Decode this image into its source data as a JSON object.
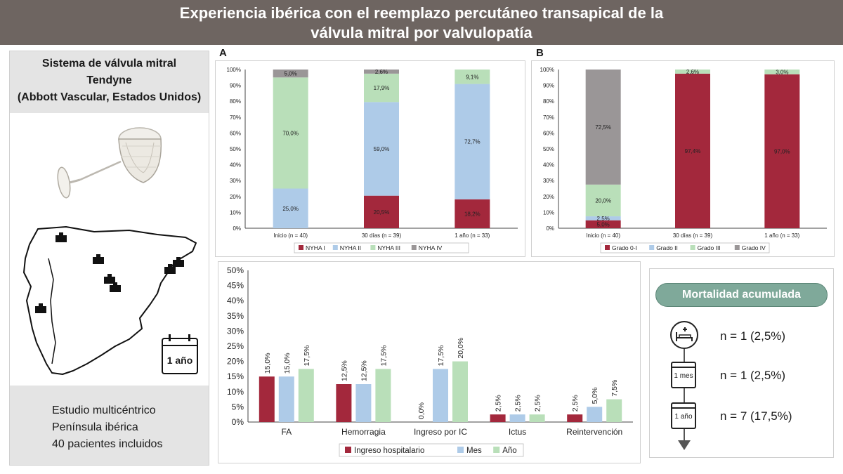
{
  "header": {
    "line1": "Experiencia ibérica con el reemplazo percutáneo transapical de la",
    "line2": "válvula mitral por valvulopatía"
  },
  "left": {
    "title_line1": "Sistema de válvula mitral",
    "title_line2": "Tendyne",
    "title_line3": "(Abbott Vascular, Estados Unidos)",
    "calendar_label": "1 año",
    "info_line1": "Estudio multicéntrico",
    "info_line2": "Península ibérica",
    "info_line3": "40 pacientes incluidos"
  },
  "colors": {
    "red": "#a3283c",
    "blue": "#aecbe8",
    "green": "#b9dfb9",
    "gray": "#9a9697",
    "teal": "#7fa99a"
  },
  "chart_data": [
    {
      "panel_label": "A",
      "type": "bar",
      "stacked": true,
      "categories": [
        "Inicio (n = 40)",
        "30 días (n = 39)",
        "1 año (n = 33)"
      ],
      "y_ticks": [
        "0%",
        "10%",
        "20%",
        "30%",
        "40%",
        "50%",
        "60%",
        "70%",
        "80%",
        "90%",
        "100%"
      ],
      "ylim": [
        0,
        100
      ],
      "legend_position": "bottom",
      "series": [
        {
          "name": "NYHA I",
          "color": "#a3283c",
          "values": [
            0,
            20.5,
            18.2
          ],
          "labels": [
            "",
            "20,5%",
            "18,2%"
          ]
        },
        {
          "name": "NYHA II",
          "color": "#aecbe8",
          "values": [
            25.0,
            59.0,
            72.7
          ],
          "labels": [
            "25,0%",
            "59,0%",
            "72,7%"
          ]
        },
        {
          "name": "NYHA III",
          "color": "#b9dfb9",
          "values": [
            70.0,
            17.9,
            9.1
          ],
          "labels": [
            "70,0%",
            "17,9%",
            "9,1%"
          ]
        },
        {
          "name": "NYHA IV",
          "color": "#9a9697",
          "values": [
            5.0,
            2.6,
            0
          ],
          "labels": [
            "5,0%",
            "2,6%",
            ""
          ]
        }
      ]
    },
    {
      "panel_label": "B",
      "type": "bar",
      "stacked": true,
      "categories": [
        "Inicio (n = 40)",
        "30 días (n = 39)",
        "1 año (n = 33)"
      ],
      "y_ticks": [
        "0%",
        "10%",
        "20%",
        "30%",
        "40%",
        "50%",
        "60%",
        "70%",
        "80%",
        "90%",
        "100%"
      ],
      "ylim": [
        0,
        100
      ],
      "legend_position": "bottom",
      "series": [
        {
          "name": "Grado 0-I",
          "color": "#a3283c",
          "values": [
            5.0,
            97.4,
            97.0
          ],
          "labels": [
            "5,0%",
            "97,4%",
            "97,0%"
          ]
        },
        {
          "name": "Grado II",
          "color": "#aecbe8",
          "values": [
            2.5,
            0,
            0
          ],
          "labels": [
            "2,5%",
            "",
            ""
          ]
        },
        {
          "name": "Grado III",
          "color": "#b9dfb9",
          "values": [
            20.0,
            2.6,
            3.0
          ],
          "labels": [
            "20,0%",
            "2,6%",
            "3,0%"
          ]
        },
        {
          "name": "Grado IV",
          "color": "#9a9697",
          "values": [
            72.5,
            0,
            0
          ],
          "labels": [
            "72,5%",
            "",
            ""
          ]
        }
      ]
    },
    {
      "type": "bar",
      "stacked": false,
      "categories": [
        "FA",
        "Hemorragia",
        "Ingreso por IC",
        "Ictus",
        "Reintervención"
      ],
      "y_ticks": [
        "0%",
        "5%",
        "10%",
        "15%",
        "20%",
        "25%",
        "30%",
        "35%",
        "40%",
        "45%",
        "50%"
      ],
      "ylim": [
        0,
        50
      ],
      "legend_position": "bottom",
      "series": [
        {
          "name": "Ingreso hospitalario",
          "color": "#a3283c",
          "values": [
            15.0,
            12.5,
            0.0,
            2.5,
            2.5
          ],
          "labels": [
            "15,0%",
            "12,5%",
            "0,0%",
            "2,5%",
            "2,5%"
          ]
        },
        {
          "name": "Mes",
          "color": "#aecbe8",
          "values": [
            15.0,
            12.5,
            17.5,
            2.5,
            5.0
          ],
          "labels": [
            "15,0%",
            "12,5%",
            "17,5%",
            "2,5%",
            "5,0%"
          ]
        },
        {
          "name": "Año",
          "color": "#b9dfb9",
          "values": [
            17.5,
            17.5,
            20.0,
            2.5,
            7.5
          ],
          "labels": [
            "17,5%",
            "17,5%",
            "20,0%",
            "2,5%",
            "7,5%"
          ]
        }
      ]
    }
  ],
  "mortality": {
    "title": "Mortalidad acumulada",
    "rows": [
      {
        "icon": "hospital-bed-icon",
        "text": "n = 1 (2,5%)"
      },
      {
        "icon": "calendar-icon",
        "calendar_label": "1 mes",
        "text": "n = 1 (2,5%)"
      },
      {
        "icon": "calendar-icon",
        "calendar_label": "1 año",
        "text": "n = 7 (17,5%)"
      }
    ]
  }
}
